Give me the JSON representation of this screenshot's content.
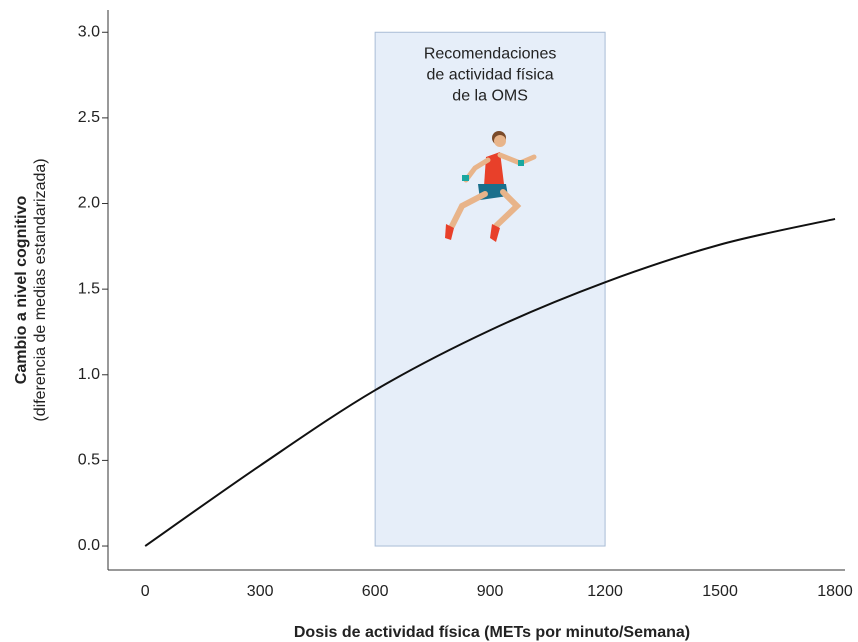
{
  "chart_data": {
    "type": "line",
    "x_label": "Dosis de actividad física (METs por minuto/Semana)",
    "y_label": [
      "Cambio a nivel cognitivo",
      "(diferencia de medias estandarizada)"
    ],
    "x": [
      0,
      300,
      600,
      900,
      1200,
      1500,
      1800
    ],
    "series": [
      {
        "color": "#111111",
        "values": [
          0,
          0.47,
          0.91,
          1.26,
          1.54,
          1.76,
          1.91
        ]
      }
    ],
    "xlim": [
      -97,
      1826
    ],
    "xticks": [
      0,
      300,
      600,
      900,
      1200,
      1500,
      1800
    ],
    "ylim": [
      -0.14,
      3.13
    ],
    "yticks": [
      {
        "value": 0,
        "label": "0.0"
      },
      {
        "value": 0.5,
        "label": "0.5"
      },
      {
        "value": 1,
        "label": "1.0"
      },
      {
        "value": 1.5,
        "label": "1.5"
      },
      {
        "value": 2,
        "label": "2.0"
      },
      {
        "value": 2.5,
        "label": "2.5"
      },
      {
        "value": 3,
        "label": "3.0"
      }
    ],
    "highlight": {
      "x": [
        600,
        1200
      ],
      "y": [
        0,
        3.0
      ],
      "color": "#e6eef9",
      "label": [
        "Recomendaciones",
        "de actividad física",
        "de la OMS"
      ]
    }
  }
}
